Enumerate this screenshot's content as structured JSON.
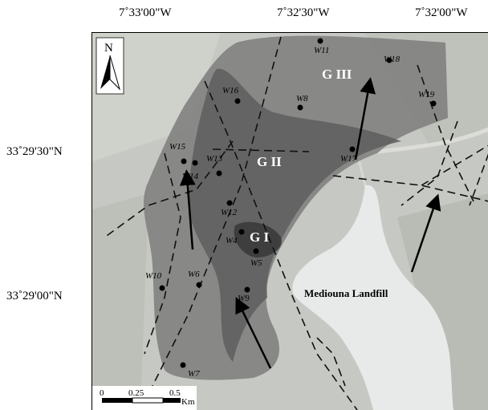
{
  "coordinates": {
    "longitudes": [
      "7˚33'00\"W",
      "7˚32'30\"W",
      "7˚32'00\"W"
    ],
    "latitudes": [
      "33˚29'30\"N",
      "33˚29'00\"N"
    ]
  },
  "north_arrow": {
    "label": "N"
  },
  "zones": [
    "G I",
    "G II",
    "G III"
  ],
  "landfill_label": "Mediouna Landfill",
  "wells": [
    "W11",
    "W18",
    "W16",
    "W8",
    "W19",
    "W15",
    "W13",
    "W17",
    "W14",
    "W12",
    "W4",
    "W5",
    "W10",
    "W6",
    "W9",
    "W7"
  ],
  "scale_bar": {
    "ticks": [
      "0",
      "0.25",
      "0.5"
    ],
    "unit": "Km"
  },
  "colors": {
    "zone_g3": "#7c7c7c",
    "zone_g2": "#5e5e5e",
    "zone_g1": "#3c3c3c",
    "landfill": "#e8eaea",
    "background": "#c6c9c3"
  }
}
